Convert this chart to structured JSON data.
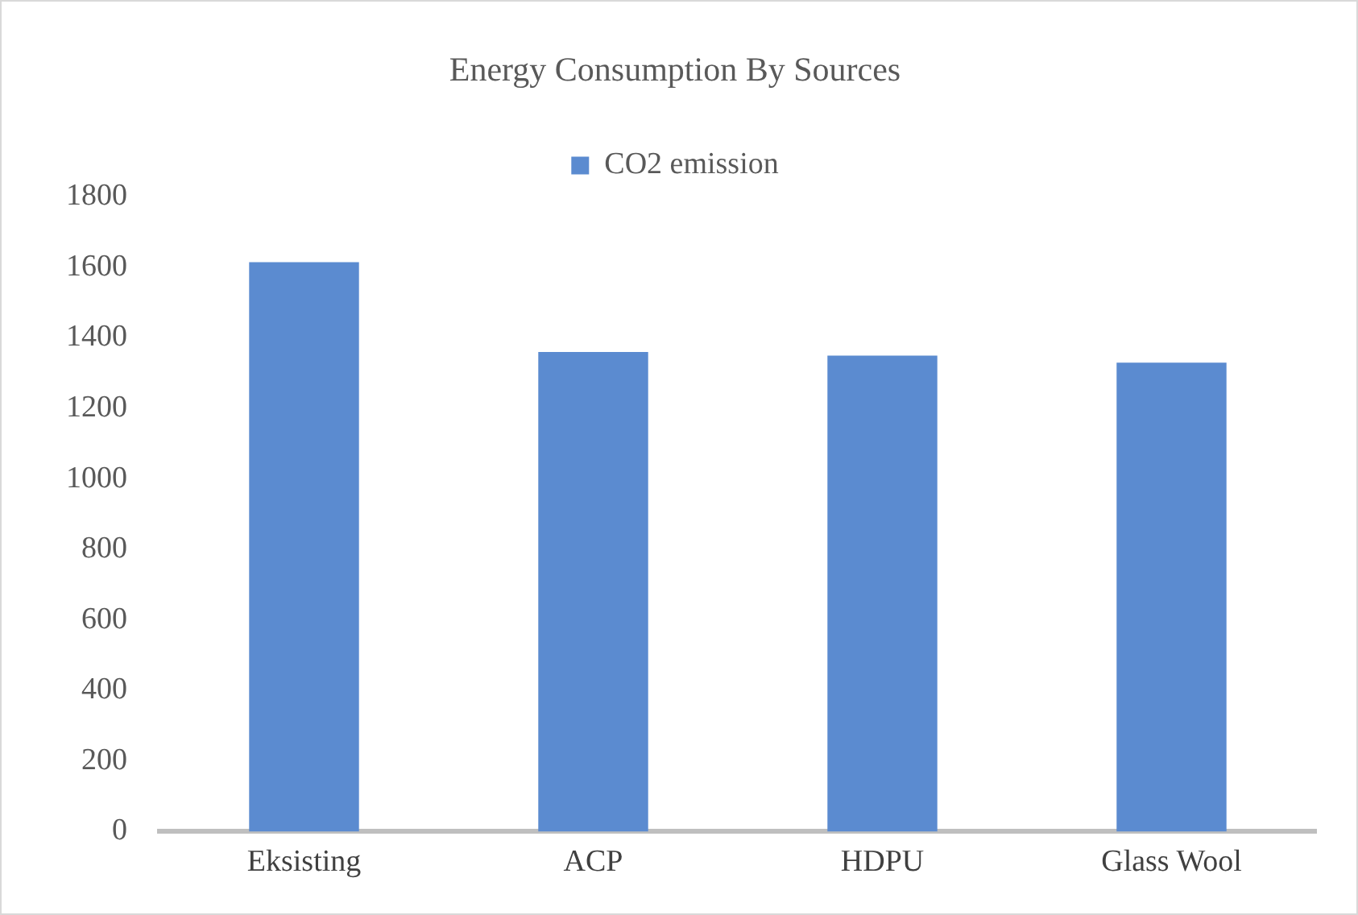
{
  "chart_data": {
    "type": "bar",
    "title": "Energy Consumption By Sources",
    "categories": [
      "Eksisting",
      "ACP",
      "HDPU",
      "Glass Wool"
    ],
    "series": [
      {
        "name": "CO2 emission",
        "color": "#5b8bd0",
        "values": [
          1615,
          1360,
          1350,
          1330
        ]
      }
    ],
    "ylim": [
      0,
      1800
    ],
    "yticks": [
      0,
      200,
      400,
      600,
      800,
      1000,
      1200,
      1400,
      1600,
      1800
    ],
    "grid": false,
    "legend": "top"
  }
}
